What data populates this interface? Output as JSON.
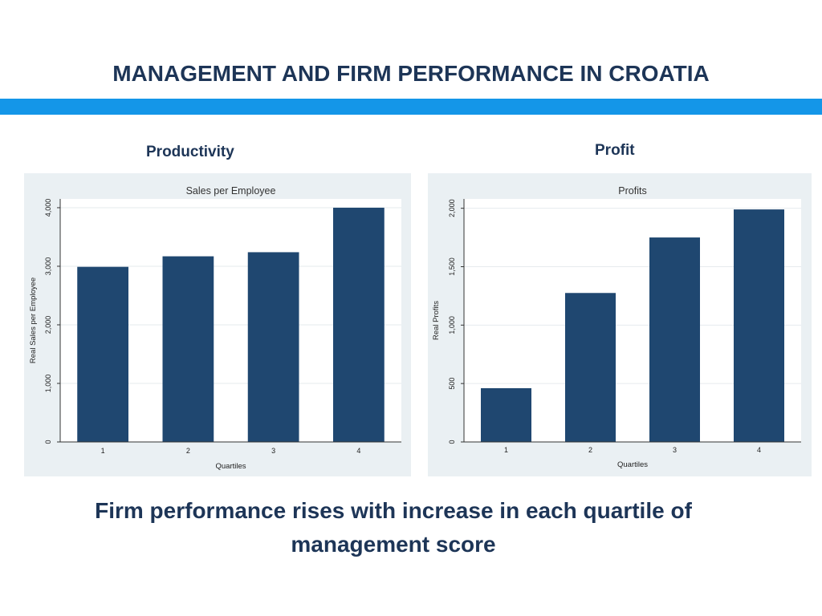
{
  "slide": {
    "title": "MANAGEMENT AND FIRM PERFORMANCE IN CROATIA",
    "left_label": "Productivity",
    "right_label": "Profit",
    "caption_line1": "Firm performance rises with increase in each quartile of",
    "caption_line2": "management score"
  },
  "colors": {
    "title_text": "#1d3557",
    "accent_bar": "#1496e8",
    "bar_fill": "#1f4770",
    "panel_bg": "#eaf0f3"
  },
  "chart_data": [
    {
      "type": "bar",
      "title": "Sales per Employee",
      "xlabel": "Quartiles",
      "ylabel": "Real Sales per Employee",
      "categories": [
        "1",
        "2",
        "3",
        "4"
      ],
      "values": [
        2990,
        3170,
        3240,
        4000
      ],
      "ylim": [
        0,
        4150
      ],
      "yticks": [
        0,
        1000,
        2000,
        3000,
        4000
      ],
      "ytick_labels": [
        "0",
        "1,000",
        "2,000",
        "3,000",
        "4,000"
      ],
      "grid": true
    },
    {
      "type": "bar",
      "title": "Profits",
      "xlabel": "Quartiles",
      "ylabel": "Real Profits",
      "categories": [
        "1",
        "2",
        "3",
        "4"
      ],
      "values": [
        460,
        1275,
        1750,
        1990
      ],
      "ylim": [
        0,
        2080
      ],
      "yticks": [
        0,
        500,
        1000,
        1500,
        2000
      ],
      "ytick_labels": [
        "0",
        "500",
        "1,000",
        "1,500",
        "2,000"
      ],
      "grid": true
    }
  ]
}
